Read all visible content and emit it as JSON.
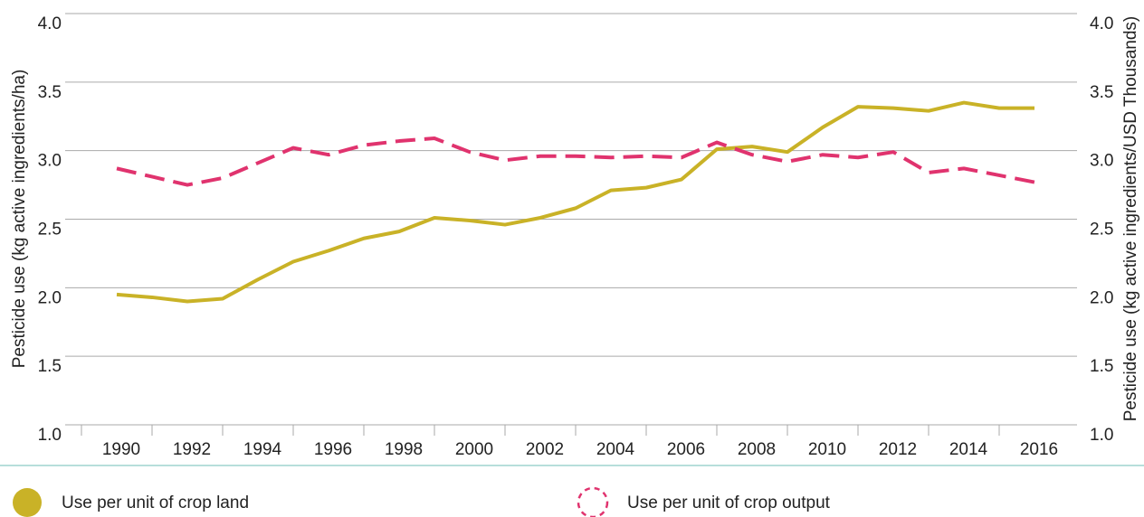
{
  "chart_data": {
    "type": "line",
    "y_label": "Pesticide use (kg active ingredients/ha)",
    "y2_label": "Pesticide use (kg active ingredients/USD Thousands)",
    "categories": [
      "1990",
      null,
      "1992",
      null,
      "1994",
      null,
      "1996",
      null,
      "1998",
      null,
      "2000",
      null,
      "2002",
      null,
      "2004",
      null,
      "2006",
      null,
      "2008",
      null,
      "2010",
      null,
      "2012",
      null,
      "2014",
      null,
      "2016"
    ],
    "series": [
      {
        "name": "Use per unit of crop land",
        "color": "#c9b227",
        "dashed": false,
        "values": [
          1.95,
          1.93,
          1.9,
          1.92,
          2.06,
          2.19,
          2.27,
          2.36,
          2.41,
          2.51,
          2.49,
          2.46,
          2.51,
          2.58,
          2.71,
          2.73,
          2.79,
          3.01,
          3.03,
          2.99,
          3.17,
          3.32,
          3.31,
          3.29,
          3.35,
          3.31,
          3.31
        ]
      },
      {
        "name": "Use per unit of crop output",
        "color": "#e0336e",
        "dashed": true,
        "axis": "y2",
        "values": [
          2.87,
          2.81,
          2.75,
          2.8,
          2.91,
          3.02,
          2.97,
          3.04,
          3.07,
          3.09,
          2.99,
          2.93,
          2.96,
          2.96,
          2.95,
          2.96,
          2.95,
          3.06,
          2.97,
          2.92,
          2.97,
          2.95,
          2.99,
          2.84,
          2.87,
          2.82,
          2.77
        ]
      }
    ],
    "ylim": [
      1,
      4
    ],
    "yticks": [
      {
        "value": 1,
        "label": "1.0"
      },
      {
        "value": 1.5,
        "label": "1.5"
      },
      {
        "value": 2,
        "label": "2.0"
      },
      {
        "value": 2.5,
        "label": "2.5"
      },
      {
        "value": 3,
        "label": "3.0"
      },
      {
        "value": 3.5,
        "label": "3.5"
      },
      {
        "value": 4,
        "label": "4.0"
      }
    ],
    "y2lim": [
      1,
      4
    ],
    "y2ticks": [
      {
        "value": 1,
        "label": "1.0"
      },
      {
        "value": 1.5,
        "label": "1.5"
      },
      {
        "value": 2,
        "label": "2.0"
      },
      {
        "value": 2.5,
        "label": "2.5"
      },
      {
        "value": 3,
        "label": "3.0"
      },
      {
        "value": 3.5,
        "label": "3.5"
      },
      {
        "value": 4,
        "label": "4.0"
      }
    ],
    "grid": true
  }
}
